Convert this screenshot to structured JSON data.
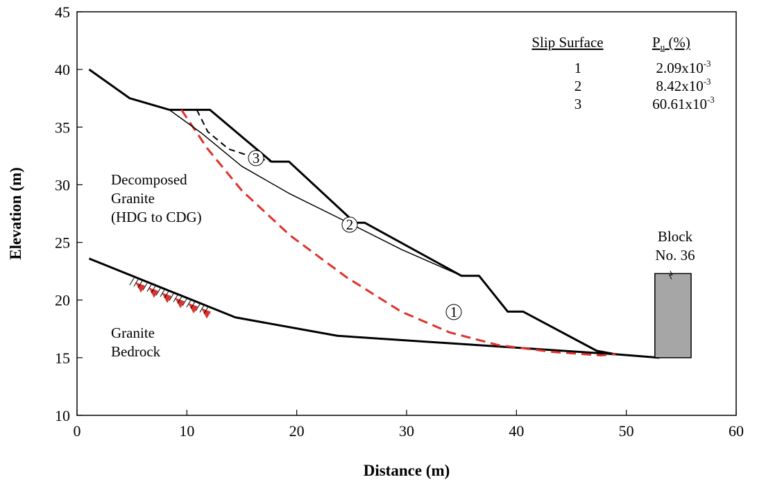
{
  "chart_data": {
    "type": "line",
    "xlabel": "Distance (m)",
    "ylabel": "Elevation (m)",
    "xlim": [
      0,
      60
    ],
    "xticks": [
      0,
      10,
      20,
      30,
      40,
      50,
      60
    ],
    "ylim": [
      10,
      45
    ],
    "yticks": [
      10,
      15,
      20,
      25,
      30,
      35,
      40,
      45
    ],
    "series": [
      {
        "color": "#000000",
        "line_style": "thick",
        "x": [
          1.1,
          4.8,
          8.4,
          12.1,
          17.7,
          19.3,
          25.3,
          26.2,
          35.0,
          36.6,
          39.2,
          40.6,
          47.3,
          49.0
        ],
        "values": [
          40.0,
          37.5,
          36.5,
          36.5,
          32.0,
          32.0,
          26.7,
          26.7,
          22.1,
          22.1,
          19.0,
          19.0,
          15.6,
          15.3
        ]
      },
      {
        "color": "#000000",
        "line_style": "thick",
        "x": [
          1.1,
          14.4,
          23.7,
          49.0,
          53.0
        ],
        "values": [
          23.6,
          18.5,
          16.9,
          15.3,
          15.0
        ]
      },
      {
        "color": "#e0302a",
        "line_style": "dashed",
        "x": [
          9.5,
          11.9,
          15.0,
          19.4,
          24.5,
          29.5,
          33.9,
          38.3,
          43.3,
          47.7,
          49.0
        ],
        "values": [
          36.5,
          33.1,
          29.5,
          25.6,
          22.0,
          19.0,
          17.2,
          16.1,
          15.5,
          15.2,
          15.3
        ]
      },
      {
        "color": "#000000",
        "line_style": "thin",
        "x": [
          8.4,
          11.3,
          15.0,
          19.4,
          24.5,
          29.5,
          35.0
        ],
        "values": [
          36.5,
          34.5,
          31.6,
          29.2,
          26.8,
          24.4,
          22.1
        ]
      },
      {
        "color": "#000000",
        "line_style": "thin-dashed",
        "x": [
          10.9,
          11.9,
          13.8,
          15.7,
          17.7
        ],
        "values": [
          36.5,
          34.6,
          33.1,
          32.5,
          32.0
        ]
      }
    ],
    "block": {
      "x": [
        52.6,
        55.9
      ],
      "y": [
        15.0,
        22.3
      ],
      "color": "#a6a6a6"
    },
    "slip_labels": [
      "1",
      "2",
      "3"
    ],
    "annotations": [
      [
        "Decomposed",
        "Granite",
        "(HDG to CDG)"
      ],
      [
        "Granite",
        "Bedrock"
      ],
      [
        "Block",
        "No. 36"
      ]
    ],
    "table": {
      "headers": [
        "Slip Surface",
        {
          "base": "P",
          "sub": "u",
          "suffix": " (%)"
        }
      ],
      "rows": [
        [
          "1",
          {
            "mantissa": "2.09x10",
            "exponent": "-3"
          }
        ],
        [
          "2",
          {
            "mantissa": "8.42x10",
            "exponent": "-3"
          }
        ],
        [
          "3",
          {
            "mantissa": "60.61x10",
            "exponent": "-3"
          }
        ]
      ]
    }
  }
}
